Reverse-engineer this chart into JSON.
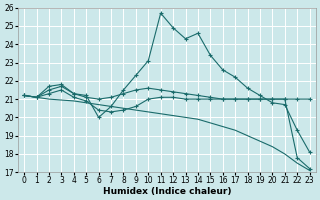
{
  "xlabel": "Humidex (Indice chaleur)",
  "x": [
    0,
    1,
    2,
    3,
    4,
    5,
    6,
    7,
    8,
    9,
    10,
    11,
    12,
    13,
    14,
    15,
    16,
    17,
    18,
    19,
    20,
    21,
    22,
    23
  ],
  "line_max": [
    21.2,
    21.1,
    21.7,
    21.8,
    21.3,
    21.2,
    20.0,
    20.6,
    21.5,
    22.3,
    23.1,
    25.7,
    24.9,
    24.3,
    24.6,
    23.4,
    22.6,
    22.2,
    21.6,
    21.2,
    20.8,
    20.7,
    19.3,
    18.1
  ],
  "line_mean": [
    21.2,
    21.1,
    21.5,
    21.7,
    21.3,
    21.1,
    21.0,
    21.1,
    21.3,
    21.5,
    21.6,
    21.5,
    21.4,
    21.3,
    21.2,
    21.1,
    21.0,
    21.0,
    21.0,
    21.0,
    21.0,
    21.0,
    21.0,
    21.0
  ],
  "line_min": [
    21.2,
    21.1,
    21.3,
    21.5,
    21.1,
    20.9,
    20.4,
    20.3,
    20.4,
    20.6,
    21.0,
    21.1,
    21.1,
    21.0,
    21.0,
    21.0,
    21.0,
    21.0,
    21.0,
    21.0,
    21.0,
    21.0,
    17.8,
    17.2
  ],
  "line_trend": [
    21.2,
    21.1,
    21.0,
    20.95,
    20.9,
    20.8,
    20.7,
    20.6,
    20.5,
    20.4,
    20.3,
    20.2,
    20.1,
    20.0,
    19.9,
    19.7,
    19.5,
    19.3,
    19.0,
    18.7,
    18.4,
    18.0,
    17.5,
    17.1
  ],
  "bg_color": "#cce8ea",
  "line_color": "#1a6b6b",
  "ylim": [
    17,
    26
  ],
  "yticks": [
    17,
    18,
    19,
    20,
    21,
    22,
    23,
    24,
    25,
    26
  ],
  "xticks": [
    0,
    1,
    2,
    3,
    4,
    5,
    6,
    7,
    8,
    9,
    10,
    11,
    12,
    13,
    14,
    15,
    16,
    17,
    18,
    19,
    20,
    21,
    22,
    23
  ],
  "ylabel_fontsize": 5.5,
  "xlabel_fontsize": 6.5,
  "tick_fontsize": 5.5
}
